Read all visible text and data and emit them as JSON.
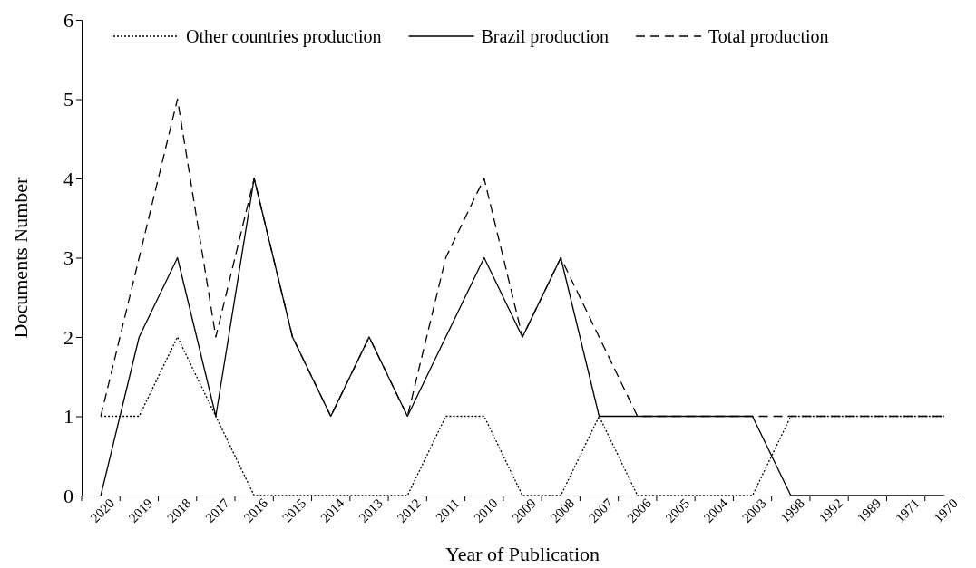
{
  "chart_data": {
    "type": "line",
    "xlabel": "Year of Publication",
    "ylabel": "Documents  Number",
    "categories": [
      "2020",
      "2019",
      "2018",
      "2017",
      "2016",
      "2015",
      "2014",
      "2013",
      "2012",
      "2011",
      "2010",
      "2009",
      "2008",
      "2007",
      "2006",
      "2005",
      "2004",
      "2003",
      "1998",
      "1992",
      "1989",
      "1971",
      "1970"
    ],
    "series": [
      {
        "name": "Other countries production",
        "color": "#000000",
        "line_style": "dotted",
        "values": [
          1,
          1,
          2,
          1,
          0,
          0,
          0,
          0,
          0,
          1,
          1,
          0,
          0,
          1,
          0,
          0,
          0,
          0,
          1,
          1,
          1,
          1,
          1
        ]
      },
      {
        "name": "Brazil production",
        "color": "#000000",
        "line_style": "solid",
        "values": [
          0,
          2,
          3,
          1,
          4,
          2,
          1,
          2,
          1,
          2,
          3,
          2,
          3,
          1,
          1,
          1,
          1,
          1,
          0,
          0,
          0,
          0,
          0
        ]
      },
      {
        "name": "Total production",
        "color": "#000000",
        "line_style": "dashed",
        "values": [
          1,
          3,
          5,
          2,
          4,
          2,
          1,
          2,
          1,
          3,
          4,
          2,
          3,
          2,
          1,
          1,
          1,
          1,
          1,
          1,
          1,
          1,
          1
        ]
      }
    ],
    "ylim": [
      0,
      6
    ],
    "yticks": [
      0,
      1,
      2,
      3,
      4,
      5,
      6
    ],
    "grid": false,
    "legend": "top",
    "marker": "none"
  }
}
